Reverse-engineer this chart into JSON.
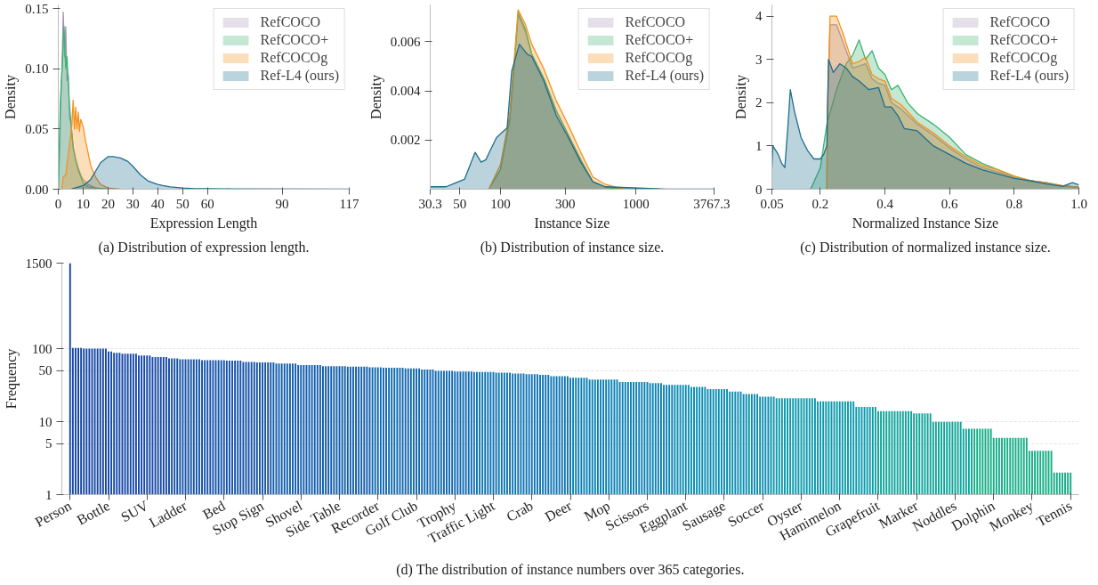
{
  "chart_data": [
    {
      "type": "area",
      "xlabel": "Expression Length",
      "ylabel": "Density",
      "xlim": [
        0,
        117
      ],
      "ylim": [
        0,
        0.153
      ],
      "xticks": [
        0,
        10,
        20,
        30,
        40,
        50,
        60,
        90,
        117
      ],
      "yticks": [
        {
          "value": 0,
          "label": "0.00"
        },
        {
          "value": 0.05,
          "label": "0.05"
        },
        {
          "value": 0.1,
          "label": "0.10"
        },
        {
          "value": 0.15,
          "label": "0.15"
        }
      ],
      "legend": "top right",
      "annotations": [
        "(a) Distribution of expression length."
      ],
      "series": [
        {
          "name": "RefCOCO",
          "color": "#a494b4",
          "x": [
            0,
            0.5,
            1,
            1.5,
            2,
            2.5,
            3,
            3.5,
            4,
            4.5,
            5,
            6,
            7,
            8,
            9,
            10,
            12,
            15,
            20
          ],
          "values": [
            0,
            0.03,
            0.07,
            0.1,
            0.147,
            0.11,
            0.135,
            0.09,
            0.095,
            0.06,
            0.055,
            0.035,
            0.025,
            0.018,
            0.012,
            0.008,
            0.004,
            0.001,
            0
          ]
        },
        {
          "name": "RefCOCO+",
          "color": "#3cb371",
          "x": [
            0,
            0.3,
            0.8,
            1.5,
            2.3,
            3,
            3.5,
            4,
            4.5,
            5,
            6,
            7,
            8,
            10,
            12,
            15,
            20
          ],
          "values": [
            0,
            0.025,
            0.072,
            0.1,
            0.135,
            0.1,
            0.11,
            0.091,
            0.07,
            0.058,
            0.034,
            0.024,
            0.016,
            0.005,
            0.002,
            0.001,
            0
          ]
        },
        {
          "name": "RefCOCOg",
          "color": "#f5921e",
          "x": [
            1.5,
            2,
            3,
            4,
            5,
            5.5,
            6,
            6.5,
            7,
            7.5,
            8,
            8.5,
            9,
            10,
            11,
            12,
            13,
            14,
            15,
            17,
            20,
            25
          ],
          "values": [
            0,
            0.01,
            0.012,
            0.028,
            0.045,
            0.055,
            0.074,
            0.05,
            0.068,
            0.05,
            0.064,
            0.048,
            0.058,
            0.052,
            0.04,
            0.03,
            0.02,
            0.015,
            0.01,
            0.004,
            0.001,
            0
          ]
        },
        {
          "name": "Ref-L4 (ours)",
          "color": "#1f6e8c",
          "x": [
            5,
            10,
            13,
            15,
            17,
            20,
            22,
            25,
            28,
            30,
            33,
            36,
            40,
            42,
            45,
            50,
            55,
            60,
            70,
            117
          ],
          "values": [
            0,
            0.003,
            0.008,
            0.015,
            0.022,
            0.027,
            0.027,
            0.026,
            0.023,
            0.019,
            0.012,
            0.007,
            0.004,
            0.003,
            0.002,
            0.001,
            0.0005,
            0.0005,
            0.0003,
            0
          ]
        }
      ]
    },
    {
      "type": "area",
      "xlabel": "Instance Size",
      "ylabel": "Density",
      "log": "x",
      "xlim": [
        30.3,
        3767.3
      ],
      "ylim": [
        0,
        0.0075
      ],
      "xticks": [
        30.3,
        50,
        100,
        300,
        1000,
        3767.3
      ],
      "yticks": [
        0.002,
        0.004,
        0.006
      ],
      "legend": "top right",
      "annotations": [
        "(b) Distribution of instance size."
      ],
      "series": [
        {
          "name": "RefCOCO",
          "color": "#a494b4",
          "x": [
            82,
            100,
            117,
            128,
            135,
            153,
            170,
            209,
            258,
            317,
            391,
            481,
            592,
            800,
            1500
          ],
          "values": [
            0,
            0.0008,
            0.0028,
            0.0054,
            0.0071,
            0.0064,
            0.0055,
            0.0045,
            0.0032,
            0.0022,
            0.0012,
            0.0003,
            0.0001,
            0,
            0
          ]
        },
        {
          "name": "RefCOCO+",
          "color": "#3cb371",
          "x": [
            82,
            100,
            117,
            128,
            135,
            153,
            170,
            209,
            258,
            317,
            391,
            481,
            592,
            800,
            1500
          ],
          "values": [
            0,
            0.0008,
            0.0028,
            0.0055,
            0.0072,
            0.0065,
            0.0055,
            0.0045,
            0.0032,
            0.0022,
            0.0012,
            0.0003,
            0.0001,
            0,
            0
          ]
        },
        {
          "name": "RefCOCOg",
          "color": "#f5921e",
          "x": [
            82,
            100,
            117,
            128,
            135,
            153,
            170,
            209,
            258,
            317,
            391,
            481,
            592,
            800,
            1500
          ],
          "values": [
            0,
            0.001,
            0.003,
            0.0057,
            0.0073,
            0.0067,
            0.0059,
            0.0049,
            0.0036,
            0.0026,
            0.0015,
            0.0005,
            0.0002,
            0,
            0
          ]
        },
        {
          "name": "Ref-L4 (ours)",
          "color": "#1f6e8c",
          "x": [
            30.3,
            39.6,
            54.2,
            65,
            72,
            78,
            84.4,
            93.5,
            112,
            121,
            138,
            157,
            170,
            209,
            258,
            317,
            391,
            481,
            592,
            1675,
            3767.3
          ],
          "values": [
            0.0001,
            0.0001,
            0.0004,
            0.0015,
            0.0011,
            0.0012,
            0.0016,
            0.0021,
            0.0025,
            0.0048,
            0.0059,
            0.0055,
            0.0054,
            0.0044,
            0.003,
            0.0021,
            0.0011,
            0.0003,
            0.0001,
            0,
            0
          ]
        }
      ]
    },
    {
      "type": "area",
      "xlabel": "Normalized Instance Size",
      "ylabel": "Density",
      "xlim": [
        0.05,
        1.0
      ],
      "ylim": [
        0,
        4.26
      ],
      "xticks": [
        0.05,
        0.2,
        0.4,
        0.6,
        0.8,
        {
          "value": 1,
          "label": "1.0"
        }
      ],
      "yticks": [
        0,
        1,
        2,
        3,
        4
      ],
      "legend": "top right",
      "annotations": [
        "(c) Distribution of normalized instance size."
      ],
      "series": [
        {
          "name": "RefCOCO",
          "color": "#a494b4",
          "x": [
            0.22,
            0.222,
            0.23,
            0.25,
            0.27,
            0.3,
            0.32,
            0.34,
            0.36,
            0.38,
            0.4,
            0.42,
            0.45,
            0.5,
            0.55,
            0.6,
            0.65,
            0.7,
            0.75,
            0.8,
            0.85,
            0.9,
            0.95,
            1.0
          ],
          "values": [
            0,
            1.7,
            3.8,
            3.8,
            3.4,
            2.8,
            2.85,
            2.9,
            2.55,
            2.45,
            2.4,
            2.0,
            1.85,
            1.5,
            1.25,
            0.95,
            0.7,
            0.5,
            0.4,
            0.28,
            0.18,
            0.13,
            0.07,
            0.05
          ]
        },
        {
          "name": "RefCOCO+",
          "color": "#3cb371",
          "x": [
            0.17,
            0.2,
            0.22,
            0.25,
            0.28,
            0.3,
            0.32,
            0.34,
            0.36,
            0.38,
            0.4,
            0.42,
            0.44,
            0.47,
            0.5,
            0.55,
            0.6,
            0.65,
            0.7,
            0.75,
            0.8,
            0.85,
            0.9,
            0.95,
            1.0
          ],
          "values": [
            0,
            0.5,
            1.5,
            2.3,
            2.9,
            3.1,
            3.45,
            3.0,
            3.2,
            2.8,
            2.65,
            2.3,
            2.4,
            2.0,
            1.75,
            1.5,
            1.2,
            0.8,
            0.6,
            0.45,
            0.3,
            0.2,
            0.15,
            0.08,
            0.05
          ]
        },
        {
          "name": "RefCOCOg",
          "color": "#f5921e",
          "x": [
            0.22,
            0.222,
            0.23,
            0.25,
            0.27,
            0.3,
            0.32,
            0.34,
            0.36,
            0.38,
            0.4,
            0.42,
            0.45,
            0.5,
            0.55,
            0.6,
            0.65,
            0.7,
            0.75,
            0.8,
            0.85,
            0.9,
            0.95,
            1.0
          ],
          "values": [
            0,
            1.8,
            4.0,
            4.0,
            3.6,
            2.9,
            2.95,
            3.05,
            2.65,
            2.55,
            2.5,
            2.1,
            1.95,
            1.55,
            1.3,
            1.0,
            0.75,
            0.55,
            0.45,
            0.3,
            0.2,
            0.15,
            0.08,
            0.05
          ]
        },
        {
          "name": "Ref-L4 (ours)",
          "color": "#1f6e8c",
          "x": [
            0.05,
            0.053,
            0.07,
            0.08,
            0.09,
            0.1,
            0.107,
            0.12,
            0.14,
            0.16,
            0.18,
            0.2,
            0.21,
            0.22,
            0.225,
            0.24,
            0.26,
            0.28,
            0.3,
            0.32,
            0.35,
            0.38,
            0.4,
            0.42,
            0.44,
            0.46,
            0.5,
            0.55,
            0.6,
            0.65,
            0.7,
            0.75,
            0.8,
            0.85,
            0.9,
            0.95,
            0.98,
            1.0
          ],
          "values": [
            0.5,
            1.0,
            0.8,
            0.6,
            0.5,
            1.5,
            2.3,
            1.8,
            1.2,
            0.9,
            0.7,
            0.7,
            0.8,
            1.0,
            3.0,
            2.7,
            2.9,
            2.8,
            2.6,
            2.5,
            2.3,
            2.35,
            1.9,
            1.9,
            1.7,
            1.4,
            1.35,
            1.0,
            0.8,
            0.6,
            0.45,
            0.35,
            0.25,
            0.2,
            0.12,
            0.07,
            0.15,
            0.1
          ]
        }
      ]
    },
    {
      "type": "bar",
      "ylabel": "Frequency",
      "log": "y",
      "ylim": [
        1,
        1500
      ],
      "yticks": [
        1,
        5,
        10,
        50,
        100,
        1500
      ],
      "grid": "y",
      "annotations": [
        "(d) The distribution of instance numbers over 365 categories."
      ],
      "categories": [
        "Person",
        null,
        null,
        null,
        null,
        null,
        null,
        null,
        null,
        null,
        null,
        null,
        null,
        null,
        "Bottle",
        null,
        null,
        null,
        null,
        null,
        null,
        null,
        null,
        null,
        null,
        null,
        null,
        null,
        "SUV",
        null,
        null,
        null,
        null,
        null,
        null,
        null,
        null,
        null,
        null,
        null,
        null,
        null,
        "Ladder",
        null,
        null,
        null,
        null,
        null,
        null,
        null,
        null,
        null,
        null,
        null,
        null,
        null,
        "Bed",
        null,
        null,
        null,
        null,
        null,
        null,
        null,
        null,
        null,
        null,
        null,
        null,
        null,
        "Stop Sign",
        null,
        null,
        null,
        null,
        null,
        null,
        null,
        null,
        null,
        null,
        null,
        null,
        null,
        "Shovel",
        null,
        null,
        null,
        null,
        null,
        null,
        null,
        null,
        null,
        null,
        null,
        null,
        null,
        "Side Table",
        null,
        null,
        null,
        null,
        null,
        null,
        null,
        null,
        null,
        null,
        null,
        null,
        null,
        "Recorder",
        null,
        null,
        null,
        null,
        null,
        null,
        null,
        null,
        null,
        null,
        null,
        null,
        null,
        "Golf Club",
        null,
        null,
        null,
        null,
        null,
        null,
        null,
        null,
        null,
        null,
        null,
        null,
        null,
        "Trophy",
        null,
        null,
        null,
        null,
        null,
        null,
        null,
        null,
        null,
        null,
        null,
        null,
        null,
        "Traffic Light",
        null,
        null,
        null,
        null,
        null,
        null,
        null,
        null,
        null,
        null,
        null,
        null,
        null,
        "Crab",
        null,
        null,
        null,
        null,
        null,
        null,
        null,
        null,
        null,
        null,
        null,
        null,
        null,
        "Deer",
        null,
        null,
        null,
        null,
        null,
        null,
        null,
        null,
        null,
        null,
        null,
        null,
        null,
        "Mop",
        null,
        null,
        null,
        null,
        null,
        null,
        null,
        null,
        null,
        null,
        null,
        null,
        null,
        "Scissors",
        null,
        null,
        null,
        null,
        null,
        null,
        null,
        null,
        null,
        null,
        null,
        null,
        null,
        "Eggplant",
        null,
        null,
        null,
        null,
        null,
        null,
        null,
        null,
        null,
        null,
        null,
        null,
        null,
        "Sausage",
        null,
        null,
        null,
        null,
        null,
        null,
        null,
        null,
        null,
        null,
        null,
        null,
        null,
        "Soccer",
        null,
        null,
        null,
        null,
        null,
        null,
        null,
        null,
        null,
        null,
        null,
        null,
        null,
        "Oyster",
        null,
        null,
        null,
        null,
        null,
        null,
        null,
        null,
        null,
        null,
        null,
        null,
        null,
        "Hamimelon",
        null,
        null,
        null,
        null,
        null,
        null,
        null,
        null,
        null,
        null,
        null,
        null,
        null,
        "Grapefruit",
        null,
        null,
        null,
        null,
        null,
        null,
        null,
        null,
        null,
        null,
        null,
        null,
        null,
        "Marker",
        null,
        null,
        null,
        null,
        null,
        null,
        null,
        null,
        null,
        null,
        null,
        null,
        null,
        "Noddles",
        null,
        null,
        null,
        null,
        null,
        null,
        null,
        null,
        null,
        null,
        null,
        null,
        null,
        "Dolphin",
        null,
        null,
        null,
        null,
        null,
        null,
        null,
        null,
        null,
        null,
        null,
        null,
        null,
        "Monkey",
        null,
        null,
        null,
        null,
        null,
        null,
        null,
        null,
        null,
        null,
        null,
        null,
        null,
        "Tennis"
      ],
      "values": [
        1500,
        103,
        103,
        103,
        103,
        101,
        101,
        101,
        101,
        101,
        101,
        101,
        101,
        101,
        92,
        92,
        88,
        88,
        88,
        86,
        86,
        86,
        86,
        86,
        86,
        81,
        81,
        81,
        81,
        81,
        77,
        77,
        77,
        77,
        77,
        77,
        74,
        74,
        74,
        74,
        72,
        72,
        72,
        72,
        72,
        72,
        72,
        72,
        70,
        70,
        70,
        70,
        70,
        70,
        70,
        70,
        70,
        69,
        69,
        69,
        69,
        69,
        69,
        66,
        66,
        66,
        66,
        66,
        65,
        65,
        65,
        65,
        65,
        65,
        65,
        63,
        63,
        63,
        63,
        63,
        63,
        63,
        63,
        60,
        60,
        60,
        60,
        60,
        60,
        60,
        60,
        60,
        58,
        58,
        58,
        58,
        58,
        58,
        58,
        58,
        58,
        57,
        57,
        57,
        57,
        57,
        57,
        57,
        57,
        56,
        56,
        56,
        56,
        56,
        55,
        55,
        55,
        55,
        55,
        55,
        55,
        55,
        54,
        54,
        54,
        54,
        54,
        54,
        52,
        52,
        52,
        52,
        52,
        50,
        50,
        50,
        50,
        50,
        50,
        50,
        49,
        49,
        49,
        49,
        49,
        49,
        49,
        48,
        48,
        48,
        48,
        48,
        48,
        48,
        48,
        47,
        47,
        47,
        47,
        47,
        47,
        46,
        46,
        46,
        46,
        46,
        45,
        45,
        45,
        45,
        45,
        44,
        44,
        44,
        44,
        42,
        42,
        42,
        42,
        42,
        42,
        42,
        40,
        40,
        40,
        40,
        40,
        40,
        40,
        38,
        38,
        38,
        38,
        38,
        38,
        38,
        38,
        38,
        38,
        38,
        35,
        35,
        35,
        35,
        35,
        35,
        35,
        35,
        35,
        35,
        35,
        34,
        34,
        34,
        34,
        34,
        32,
        32,
        32,
        32,
        32,
        32,
        32,
        32,
        32,
        32,
        30,
        30,
        30,
        30,
        30,
        30,
        28,
        28,
        28,
        28,
        28,
        28,
        28,
        28,
        26,
        26,
        26,
        26,
        26,
        24,
        24,
        24,
        24,
        24,
        24,
        22,
        22,
        22,
        22,
        22,
        22,
        21,
        21,
        21,
        21,
        21,
        21,
        21,
        21,
        21,
        21,
        21,
        21,
        21,
        21,
        21,
        19,
        19,
        19,
        19,
        19,
        19,
        19,
        19,
        19,
        19,
        19,
        19,
        19,
        19,
        16,
        16,
        16,
        16,
        16,
        16,
        16,
        16,
        14,
        14,
        14,
        14,
        14,
        14,
        14,
        14,
        14,
        14,
        14,
        14,
        14,
        13,
        13,
        13,
        13,
        13,
        13,
        13,
        10,
        10,
        10,
        10,
        10,
        10,
        10,
        10,
        10,
        10,
        10,
        8,
        8,
        8,
        8,
        8,
        8,
        8,
        8,
        8,
        8,
        8,
        6,
        6,
        6,
        6,
        6,
        6,
        6,
        6,
        6,
        6,
        6,
        6,
        6,
        4,
        4,
        4,
        4,
        4,
        4,
        4,
        4,
        4,
        2,
        2,
        2,
        2,
        2,
        2,
        2
      ],
      "colors": [
        "#1547a6",
        "#1547a6",
        "#1547a6",
        "#1547a6",
        "#1547a6",
        "#1547a6",
        "#1547a6",
        "#1547a6",
        "#1547a6",
        "#1547a6",
        "#1547a6",
        "#1547a6",
        "#1547a6",
        "#1547a6",
        "#1547a6",
        "#1547a6",
        "#1547a6",
        "#1547a6",
        "#1547a6",
        "#1547a6",
        "#1547a6",
        "#1547a6",
        "#1547a6",
        "#1547a6",
        "#1547a6",
        "#1547a6",
        "#1547a6",
        "#1547a6",
        "#1547a6",
        "#1547a6",
        "#1547a6",
        "#1547a6",
        "#1547a6",
        "#1547a6",
        "#1547a6",
        "#1547a6",
        "#1547a6",
        "#1452a9",
        "#1452a9",
        "#1452a9",
        "#1452a9",
        "#1452a9",
        "#1452a9",
        "#1452a9",
        "#1452a9",
        "#1452a9",
        "#1452a9",
        "#1452a9",
        "#1452a9",
        "#1452a9",
        "#1452a9",
        "#1452a9",
        "#1452a9",
        "#1452a9",
        "#1452a9",
        "#1452a9",
        "#1452a9",
        "#1452a9",
        "#1452a9",
        "#1452a9",
        "#1452a9",
        "#1452a9",
        "#1452a9",
        "#1452a9",
        "#1452a9",
        "#1452a9",
        "#1452a9",
        "#1452a9",
        "#1452a9",
        "#1452a9",
        "#1452a9",
        "#1452a9",
        "#1452a9",
        "#1452a9",
        "#125dad",
        "#125dad",
        "#125dad",
        "#125dad",
        "#125dad",
        "#125dad",
        "#125dad",
        "#125dad",
        "#125dad",
        "#125dad",
        "#125dad",
        "#125dad",
        "#125dad",
        "#125dad",
        "#125dad",
        "#125dad",
        "#125dad",
        "#125dad",
        "#125dad",
        "#125dad",
        "#125dad",
        "#125dad",
        "#125dad",
        "#125dad",
        "#125dad",
        "#125dad",
        "#125dad",
        "#125dad",
        "#125dad",
        "#125dad",
        "#125dad",
        "#125dad",
        "#125dad",
        "#125dad",
        "#125dad",
        "#125dad",
        "#1068b0",
        "#1068b0",
        "#1068b0",
        "#1068b0",
        "#1068b0",
        "#1068b0",
        "#1068b0",
        "#1068b0",
        "#1068b0",
        "#1068b0",
        "#1068b0",
        "#1068b0",
        "#1068b0",
        "#1068b0",
        "#1068b0",
        "#1068b0",
        "#1068b0",
        "#1068b0",
        "#1068b0",
        "#1068b0",
        "#1068b0",
        "#1068b0",
        "#1068b0",
        "#1068b0",
        "#1068b0",
        "#1068b0",
        "#1068b0",
        "#1068b0",
        "#1068b0",
        "#1068b0",
        "#1068b0",
        "#1068b0",
        "#1068b0",
        "#1068b0",
        "#1068b0",
        "#1068b0",
        "#1068b0",
        "#0e74b3",
        "#0e74b3",
        "#0e74b3",
        "#0e74b3",
        "#0e74b3",
        "#0e74b3",
        "#0e74b3",
        "#0e74b3",
        "#0e74b3",
        "#0e74b3",
        "#0e74b3",
        "#0e74b3",
        "#0e74b3",
        "#0e74b3",
        "#0e74b3",
        "#0e74b3",
        "#0e74b3",
        "#0e74b3",
        "#0e74b3",
        "#0e74b3",
        "#0e74b3",
        "#0e74b3",
        "#0e74b3",
        "#0e74b3",
        "#0e74b3",
        "#0e74b3",
        "#0e74b3",
        "#0e74b3",
        "#0e74b3",
        "#0e74b3",
        "#0e74b3",
        "#0e74b3",
        "#0e74b3",
        "#0e74b3",
        "#0e74b3",
        "#0e74b3",
        "#0b80b4",
        "#0b80b4",
        "#0b80b4",
        "#0b80b4",
        "#0b80b4",
        "#0b80b4",
        "#0b80b4",
        "#0b80b4",
        "#0b80b4",
        "#0b80b4",
        "#0b80b4",
        "#0b80b4",
        "#0b80b4",
        "#0b80b4",
        "#0b80b4",
        "#0b80b4",
        "#0b80b4",
        "#0b80b4",
        "#0b80b4",
        "#0b80b4",
        "#0b80b4",
        "#0b80b4",
        "#0b80b4",
        "#0b80b4",
        "#0b80b4",
        "#0b80b4",
        "#0b80b4",
        "#0b80b4",
        "#0b80b4",
        "#0b80b4",
        "#0b80b4",
        "#0b80b4",
        "#0b80b4",
        "#0b80b4",
        "#0b80b4",
        "#0b80b4",
        "#0b80b4",
        "#0a8db2",
        "#0a8db2",
        "#0a8db2",
        "#0a8db2",
        "#0a8db2",
        "#0a8db2",
        "#0a8db2",
        "#0a8db2",
        "#0a8db2",
        "#0a8db2",
        "#0a8db2",
        "#0a8db2",
        "#0a8db2",
        "#0a8db2",
        "#0a8db2",
        "#0a8db2",
        "#0a8db2",
        "#0a8db2",
        "#0a8db2",
        "#0a8db2",
        "#0a8db2",
        "#0a8db2",
        "#0a8db2",
        "#0a8db2",
        "#0a8db2",
        "#0a8db2",
        "#0a8db2",
        "#0a8db2",
        "#0a8db2",
        "#0a8db2",
        "#0a8db2",
        "#0a8db2",
        "#0a8db2",
        "#0a8db2",
        "#0a8db2",
        "#0a8db2",
        "#0b99ab",
        "#0b99ab",
        "#0b99ab",
        "#0b99ab",
        "#0b99ab",
        "#0b99ab",
        "#0b99ab",
        "#0b99ab",
        "#0b99ab",
        "#0b99ab",
        "#0b99ab",
        "#0b99ab",
        "#0b99ab",
        "#0b99ab",
        "#0b99ab",
        "#0b99ab",
        "#0b99ab",
        "#0b99ab",
        "#0b99ab",
        "#0b99ab",
        "#0b99ab",
        "#0b99ab",
        "#0b99ab",
        "#0b99ab",
        "#0b99ab",
        "#0b99ab",
        "#0b99ab",
        "#0b99ab",
        "#0b99ab",
        "#0b99ab",
        "#0b99ab",
        "#0b99ab",
        "#0b99ab",
        "#0b99ab",
        "#0b99ab",
        "#0b99ab",
        "#0b99ab",
        "#0fa49a",
        "#0fa49a",
        "#0fa49a",
        "#0fa49a",
        "#0fa49a",
        "#0fa49a",
        "#0fa49a",
        "#0fa49a",
        "#0fa49a",
        "#0fa49a",
        "#0fa49a",
        "#0fa49a",
        "#0fa49a",
        "#0fa49a",
        "#0fa49a",
        "#0fa49a",
        "#0fa49a",
        "#0fa49a",
        "#0fa49a",
        "#0fa49a",
        "#0fa49a",
        "#0fa49a",
        "#0fa49a",
        "#0fa49a",
        "#0fa49a",
        "#0fa49a",
        "#0fa49a",
        "#0fa49a",
        "#0fa49a",
        "#0fa49a",
        "#0fa49a",
        "#0fa49a",
        "#0fa49a",
        "#0fa49a",
        "#0fa49a",
        "#0fa49a",
        "#16ad85",
        "#16ad85",
        "#16ad85",
        "#16ad85",
        "#16ad85",
        "#16ad85",
        "#16ad85",
        "#16ad85",
        "#16ad85",
        "#16ad85",
        "#16ad85",
        "#16ad85",
        "#16ad85",
        "#16ad85",
        "#16ad85",
        "#16ad85",
        "#16ad85",
        "#16ad85",
        "#16ad85",
        "#16ad85",
        "#16ad85",
        "#16ad85",
        "#16ad85",
        "#16ad85",
        "#16ad85",
        "#16ad85",
        "#16ad85",
        "#16ad85",
        "#16ad85",
        "#16ad85",
        "#16ad85",
        "#16ad85",
        "#16ad85",
        "#16ad85",
        "#16ad85",
        "#16ad85"
      ]
    }
  ]
}
